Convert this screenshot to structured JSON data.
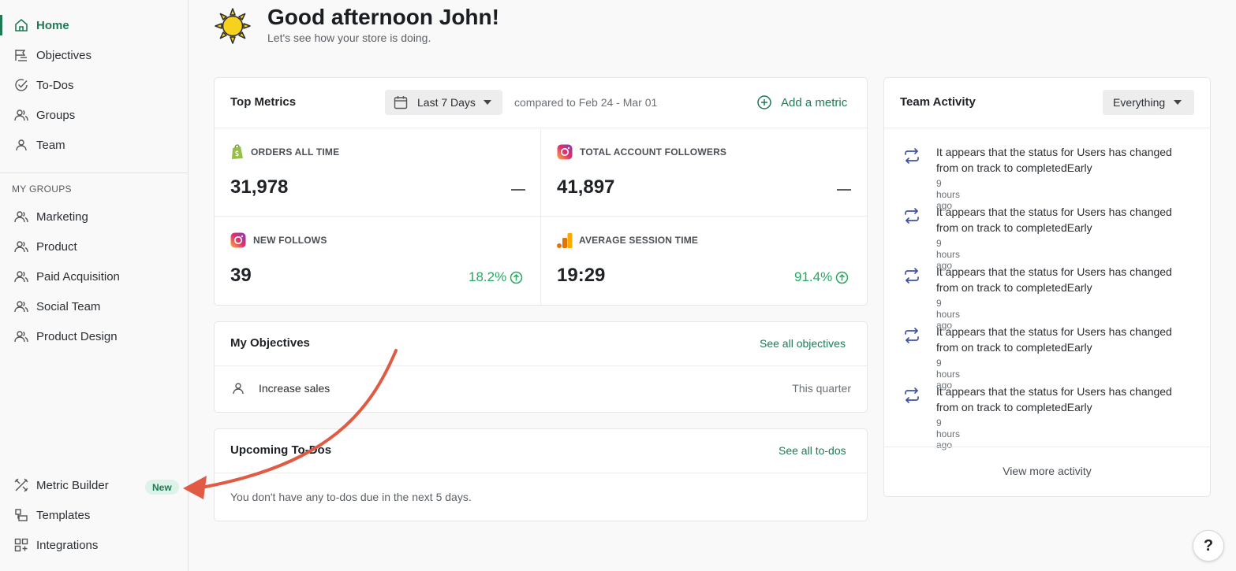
{
  "sidebar": {
    "main_items": [
      {
        "label": "Home",
        "icon": "home-icon"
      },
      {
        "label": "Objectives",
        "icon": "objectives-icon"
      },
      {
        "label": "To-Dos",
        "icon": "check-circle-icon"
      },
      {
        "label": "Groups",
        "icon": "users-icon"
      },
      {
        "label": "Team",
        "icon": "user-icon"
      }
    ],
    "groups_label": "MY GROUPS",
    "groups": [
      {
        "label": "Marketing"
      },
      {
        "label": "Product"
      },
      {
        "label": "Paid Acquisition"
      },
      {
        "label": "Social Team"
      },
      {
        "label": "Product Design"
      }
    ],
    "bottom_items": [
      {
        "label": "Metric Builder",
        "icon": "tools-icon",
        "badge": "New"
      },
      {
        "label": "Templates",
        "icon": "templates-icon"
      },
      {
        "label": "Integrations",
        "icon": "grid-icon"
      }
    ]
  },
  "header": {
    "title": "Good afternoon John!",
    "subtitle": "Let's see how your store is doing."
  },
  "top_metrics": {
    "title": "Top Metrics",
    "range_label": "Last 7 Days",
    "compared_text": "compared to Feb 24 - Mar 01",
    "add_metric_label": "Add a metric",
    "metrics": [
      {
        "label": "ORDERS ALL TIME",
        "value": "31,978",
        "change": "",
        "source_icon": "shopify-icon"
      },
      {
        "label": "TOTAL ACCOUNT FOLLOWERS",
        "value": "41,897",
        "change": "",
        "source_icon": "instagram-icon"
      },
      {
        "label": "NEW FOLLOWS",
        "value": "39",
        "change": "18.2%",
        "source_icon": "instagram-icon"
      },
      {
        "label": "AVERAGE SESSION TIME",
        "value": "19:29",
        "change": "91.4%",
        "source_icon": "google-analytics-icon"
      }
    ]
  },
  "objectives": {
    "title": "My Objectives",
    "see_all_label": "See all objectives",
    "items": [
      {
        "label": "Increase sales",
        "period": "This quarter"
      }
    ]
  },
  "todos": {
    "title": "Upcoming To-Dos",
    "see_all_label": "See all to-dos",
    "empty_text": "You don't have any to-dos due in the next 5 days."
  },
  "team_activity": {
    "title": "Team Activity",
    "filter_label": "Everything",
    "items": [
      {
        "text": "It appears that the status for Users has changed from on track to completedEarly",
        "time": "9 hours ago"
      },
      {
        "text": "It appears that the status for Users has changed from on track to completedEarly",
        "time": "9 hours ago"
      },
      {
        "text": "It appears that the status for Users has changed from on track to completedEarly",
        "time": "9 hours ago"
      },
      {
        "text": "It appears that the status for Users has changed from on track to completedEarly",
        "time": "9 hours ago"
      },
      {
        "text": "It appears that the status for Users has changed from on track to completedEarly",
        "time": "9 hours ago"
      }
    ],
    "view_more_label": "View more activity"
  },
  "help": {
    "label": "?"
  },
  "colors": {
    "accent": "#1f7a54",
    "positive": "#27a863",
    "annotation_arrow": "#e05a44"
  }
}
